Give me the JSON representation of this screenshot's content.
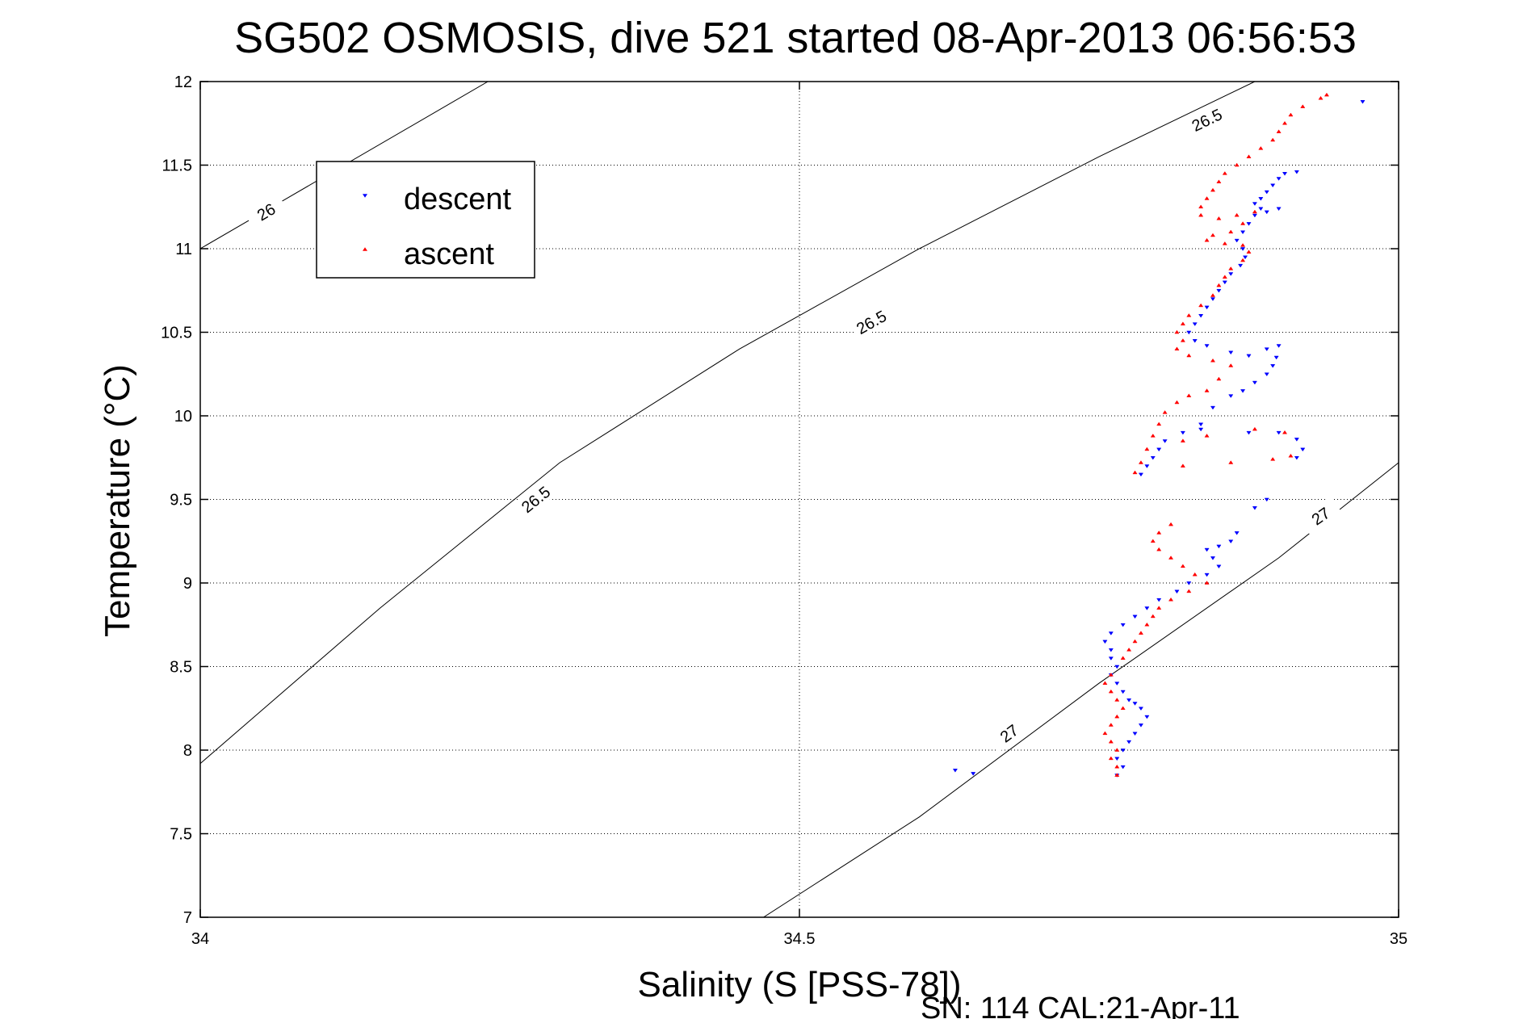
{
  "chart_data": {
    "type": "scatter",
    "title": "SG502 OSMOSIS, dive 521 started 08-Apr-2013 06:56:53",
    "xlabel": "Salinity (S [PSS-78])",
    "ylabel": "Temperature (°C)",
    "xlim": [
      34,
      35
    ],
    "ylim": [
      7,
      12
    ],
    "xticks": [
      "34",
      "34.5",
      "35"
    ],
    "yticks": [
      "7",
      "7.5",
      "8",
      "8.5",
      "9",
      "9.5",
      "10",
      "10.5",
      "11",
      "11.5",
      "12"
    ],
    "grid": true,
    "legend_position": "top-left",
    "footer": "SN: 114  CAL:21-Apr-11",
    "contours": [
      {
        "label": "26",
        "points": [
          [
            34.0,
            11.0
          ],
          [
            34.24,
            12.0
          ]
        ],
        "label_at": [
          34.055,
          11.22
        ]
      },
      {
        "label": "26.5",
        "points": [
          [
            34.0,
            7.92
          ],
          [
            34.15,
            8.85
          ],
          [
            34.3,
            9.72
          ],
          [
            34.45,
            10.4
          ],
          [
            34.6,
            11.0
          ],
          [
            34.75,
            11.55
          ],
          [
            34.88,
            12.0
          ]
        ],
        "label_at_list": [
          [
            34.28,
            9.5
          ],
          [
            34.56,
            10.56
          ],
          [
            34.84,
            11.77
          ]
        ]
      },
      {
        "label": "27",
        "points": [
          [
            34.47,
            7.0
          ],
          [
            34.6,
            7.6
          ],
          [
            34.75,
            8.4
          ],
          [
            34.9,
            9.15
          ],
          [
            35.0,
            9.72
          ]
        ],
        "label_at_list": [
          [
            34.675,
            8.1
          ],
          [
            34.935,
            9.4
          ]
        ]
      }
    ],
    "series": [
      {
        "name": "descent",
        "color": "#0000ff",
        "marker": "triangle-down",
        "points": [
          [
            34.97,
            11.88
          ],
          [
            34.915,
            11.46
          ],
          [
            34.905,
            11.45
          ],
          [
            34.9,
            11.42
          ],
          [
            34.895,
            11.38
          ],
          [
            34.89,
            11.34
          ],
          [
            34.885,
            11.3
          ],
          [
            34.88,
            11.27
          ],
          [
            34.885,
            11.24
          ],
          [
            34.89,
            11.22
          ],
          [
            34.9,
            11.24
          ],
          [
            34.88,
            11.2
          ],
          [
            34.875,
            11.15
          ],
          [
            34.87,
            11.1
          ],
          [
            34.865,
            11.05
          ],
          [
            34.87,
            11.0
          ],
          [
            34.872,
            10.95
          ],
          [
            34.868,
            10.9
          ],
          [
            34.86,
            10.85
          ],
          [
            34.855,
            10.8
          ],
          [
            34.85,
            10.75
          ],
          [
            34.845,
            10.7
          ],
          [
            34.84,
            10.65
          ],
          [
            34.835,
            10.6
          ],
          [
            34.83,
            10.55
          ],
          [
            34.825,
            10.5
          ],
          [
            34.83,
            10.45
          ],
          [
            34.84,
            10.42
          ],
          [
            34.86,
            10.38
          ],
          [
            34.875,
            10.36
          ],
          [
            34.89,
            10.4
          ],
          [
            34.9,
            10.42
          ],
          [
            34.898,
            10.35
          ],
          [
            34.895,
            10.3
          ],
          [
            34.89,
            10.25
          ],
          [
            34.88,
            10.2
          ],
          [
            34.87,
            10.15
          ],
          [
            34.86,
            10.12
          ],
          [
            34.845,
            10.05
          ],
          [
            34.835,
            9.95
          ],
          [
            34.82,
            9.9
          ],
          [
            34.805,
            9.85
          ],
          [
            34.8,
            9.8
          ],
          [
            34.795,
            9.75
          ],
          [
            34.79,
            9.7
          ],
          [
            34.785,
            9.65
          ],
          [
            34.835,
            9.92
          ],
          [
            34.875,
            9.9
          ],
          [
            34.9,
            9.9
          ],
          [
            34.915,
            9.86
          ],
          [
            34.92,
            9.8
          ],
          [
            34.915,
            9.75
          ],
          [
            34.89,
            9.5
          ],
          [
            34.88,
            9.45
          ],
          [
            34.865,
            9.3
          ],
          [
            34.86,
            9.25
          ],
          [
            34.85,
            9.22
          ],
          [
            34.84,
            9.2
          ],
          [
            34.845,
            9.15
          ],
          [
            34.85,
            9.1
          ],
          [
            34.84,
            9.05
          ],
          [
            34.825,
            9.0
          ],
          [
            34.815,
            8.95
          ],
          [
            34.8,
            8.9
          ],
          [
            34.79,
            8.85
          ],
          [
            34.78,
            8.8
          ],
          [
            34.77,
            8.75
          ],
          [
            34.76,
            8.7
          ],
          [
            34.755,
            8.65
          ],
          [
            34.76,
            8.6
          ],
          [
            34.76,
            8.55
          ],
          [
            34.765,
            8.5
          ],
          [
            34.76,
            8.45
          ],
          [
            34.765,
            8.4
          ],
          [
            34.77,
            8.35
          ],
          [
            34.775,
            8.3
          ],
          [
            34.78,
            8.28
          ],
          [
            34.785,
            8.25
          ],
          [
            34.79,
            8.2
          ],
          [
            34.785,
            8.15
          ],
          [
            34.78,
            8.1
          ],
          [
            34.775,
            8.05
          ],
          [
            34.77,
            8.0
          ],
          [
            34.765,
            7.95
          ],
          [
            34.77,
            7.9
          ],
          [
            34.765,
            7.85
          ],
          [
            34.63,
            7.88
          ],
          [
            34.645,
            7.86
          ]
        ]
      },
      {
        "name": "ascent",
        "color": "#ff0000",
        "marker": "triangle-up",
        "points": [
          [
            34.94,
            11.92
          ],
          [
            34.935,
            11.9
          ],
          [
            34.92,
            11.85
          ],
          [
            34.91,
            11.8
          ],
          [
            34.905,
            11.75
          ],
          [
            34.9,
            11.7
          ],
          [
            34.895,
            11.65
          ],
          [
            34.885,
            11.6
          ],
          [
            34.875,
            11.55
          ],
          [
            34.865,
            11.5
          ],
          [
            34.855,
            11.45
          ],
          [
            34.85,
            11.4
          ],
          [
            34.845,
            11.35
          ],
          [
            34.84,
            11.3
          ],
          [
            34.835,
            11.25
          ],
          [
            34.835,
            11.2
          ],
          [
            34.85,
            11.18
          ],
          [
            34.865,
            11.2
          ],
          [
            34.88,
            11.22
          ],
          [
            34.87,
            11.15
          ],
          [
            34.86,
            11.1
          ],
          [
            34.845,
            11.08
          ],
          [
            34.84,
            11.05
          ],
          [
            34.855,
            11.03
          ],
          [
            34.87,
            11.02
          ],
          [
            34.875,
            10.98
          ],
          [
            34.87,
            10.93
          ],
          [
            34.86,
            10.88
          ],
          [
            34.855,
            10.83
          ],
          [
            34.85,
            10.78
          ],
          [
            34.845,
            10.72
          ],
          [
            34.835,
            10.66
          ],
          [
            34.825,
            10.6
          ],
          [
            34.82,
            10.55
          ],
          [
            34.815,
            10.5
          ],
          [
            34.82,
            10.45
          ],
          [
            34.815,
            10.4
          ],
          [
            34.825,
            10.36
          ],
          [
            34.845,
            10.33
          ],
          [
            34.86,
            10.3
          ],
          [
            34.85,
            10.22
          ],
          [
            34.84,
            10.15
          ],
          [
            34.825,
            10.12
          ],
          [
            34.815,
            10.08
          ],
          [
            34.805,
            10.02
          ],
          [
            34.8,
            9.95
          ],
          [
            34.795,
            9.88
          ],
          [
            34.79,
            9.8
          ],
          [
            34.785,
            9.72
          ],
          [
            34.78,
            9.66
          ],
          [
            34.82,
            9.7
          ],
          [
            34.86,
            9.72
          ],
          [
            34.895,
            9.74
          ],
          [
            34.91,
            9.76
          ],
          [
            34.905,
            9.9
          ],
          [
            34.88,
            9.92
          ],
          [
            34.84,
            9.88
          ],
          [
            34.82,
            9.85
          ],
          [
            34.81,
            9.35
          ],
          [
            34.8,
            9.3
          ],
          [
            34.795,
            9.25
          ],
          [
            34.8,
            9.2
          ],
          [
            34.81,
            9.15
          ],
          [
            34.82,
            9.1
          ],
          [
            34.83,
            9.05
          ],
          [
            34.84,
            9.0
          ],
          [
            34.825,
            8.95
          ],
          [
            34.81,
            8.9
          ],
          [
            34.8,
            8.85
          ],
          [
            34.795,
            8.8
          ],
          [
            34.79,
            8.75
          ],
          [
            34.785,
            8.7
          ],
          [
            34.78,
            8.65
          ],
          [
            34.775,
            8.6
          ],
          [
            34.77,
            8.55
          ],
          [
            34.76,
            8.45
          ],
          [
            34.755,
            8.4
          ],
          [
            34.76,
            8.35
          ],
          [
            34.765,
            8.3
          ],
          [
            34.77,
            8.25
          ],
          [
            34.765,
            8.2
          ],
          [
            34.76,
            8.15
          ],
          [
            34.755,
            8.1
          ],
          [
            34.76,
            8.05
          ],
          [
            34.765,
            8.0
          ],
          [
            34.76,
            7.95
          ],
          [
            34.765,
            7.9
          ],
          [
            34.765,
            7.85
          ]
        ]
      }
    ]
  }
}
